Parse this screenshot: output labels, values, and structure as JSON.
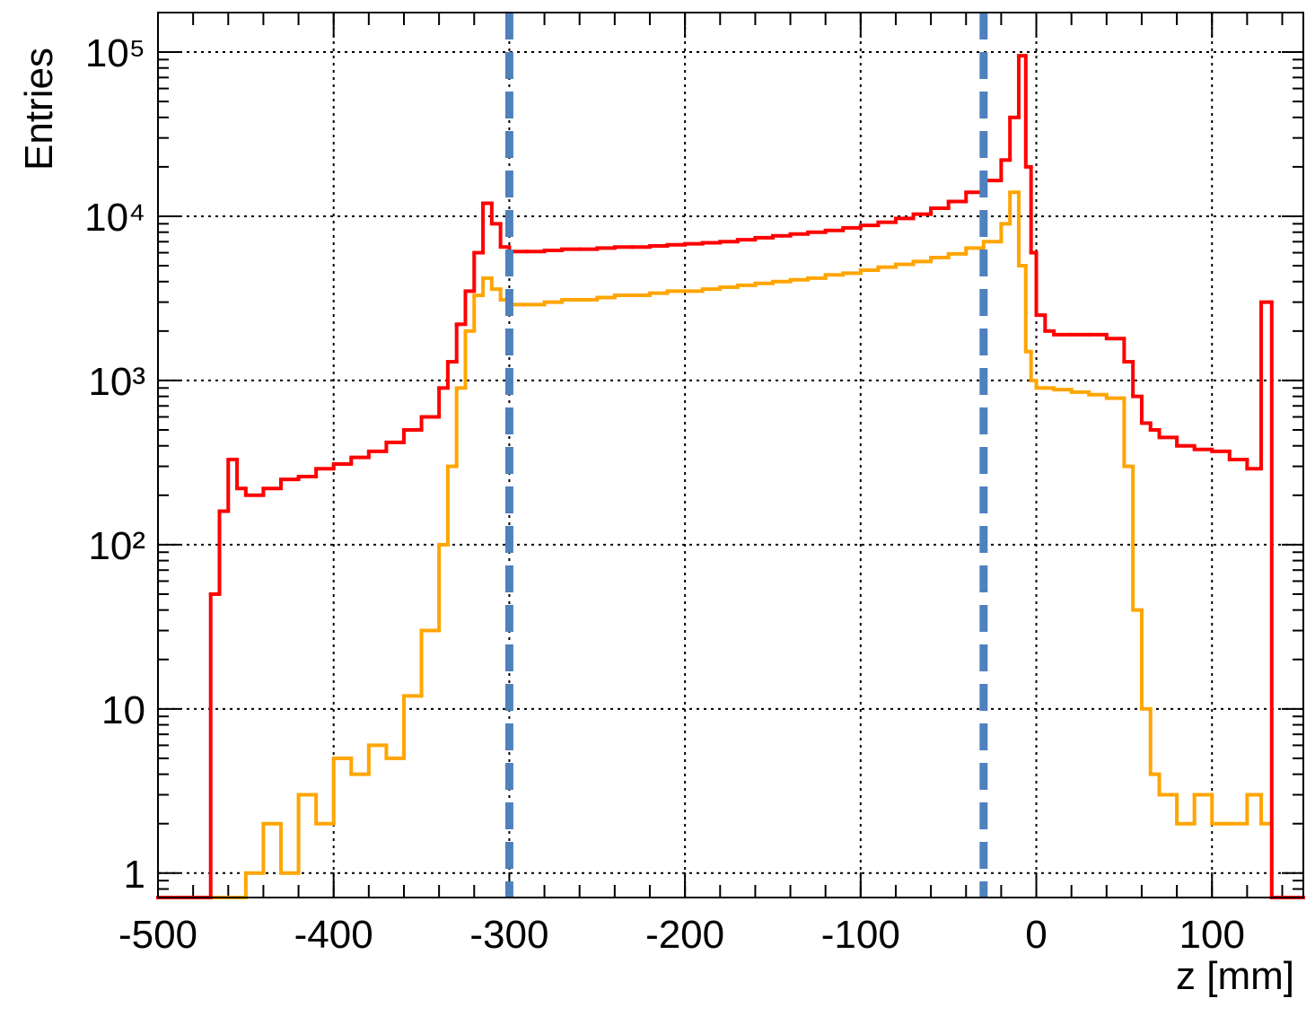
{
  "chart_data": {
    "type": "histogram",
    "ylabel": "Entries",
    "xlabel": "z [mm]",
    "log_y": true,
    "grid": true,
    "xlim": [
      -500,
      152
    ],
    "ylim": [
      0.71,
      174000
    ],
    "xticks": [
      -500,
      -400,
      -300,
      -200,
      -100,
      0,
      100
    ],
    "yticks": [
      1,
      10,
      {
        "value": 100,
        "label": "10²"
      },
      {
        "value": 1000,
        "label": "10³"
      },
      {
        "value": 10000,
        "label": "10⁴"
      },
      {
        "value": 100000,
        "label": "10⁵"
      }
    ],
    "bins": [
      -500,
      -470,
      -465,
      -460,
      -455,
      -450,
      -440,
      -430,
      -420,
      -410,
      -400,
      -390,
      -380,
      -370,
      -360,
      -350,
      -340,
      -335,
      -330,
      -325,
      -320,
      -315,
      -310,
      -305,
      -300,
      -290,
      -280,
      -270,
      -260,
      -250,
      -240,
      -230,
      -220,
      -210,
      -200,
      -190,
      -180,
      -170,
      -160,
      -150,
      -140,
      -130,
      -120,
      -110,
      -100,
      -90,
      -80,
      -70,
      -60,
      -50,
      -40,
      -30,
      -20,
      -15,
      -10,
      -6,
      -3,
      0,
      5,
      10,
      20,
      30,
      40,
      50,
      55,
      60,
      65,
      70,
      80,
      90,
      100,
      110,
      120,
      128,
      134,
      152
    ],
    "series": [
      {
        "color": "#ff0000",
        "values": [
          0,
          50,
          160,
          330,
          220,
          200,
          220,
          250,
          260,
          290,
          310,
          340,
          370,
          420,
          500,
          600,
          900,
          1300,
          2200,
          3500,
          6000,
          12000,
          9000,
          6500,
          6100,
          6100,
          6200,
          6300,
          6300,
          6400,
          6500,
          6500,
          6600,
          6700,
          6800,
          6900,
          7000,
          7200,
          7400,
          7600,
          7800,
          8000,
          8200,
          8500,
          8800,
          9200,
          9700,
          10300,
          11200,
          12300,
          14000,
          16500,
          22000,
          40000,
          95000,
          20000,
          6000,
          2500,
          2000,
          1900,
          1900,
          1900,
          1800,
          1300,
          800,
          550,
          500,
          450,
          400,
          380,
          370,
          330,
          290,
          3000,
          0
        ]
      },
      {
        "color": "#ffa500",
        "values": [
          0,
          0,
          0,
          0,
          0,
          1,
          2,
          1,
          3,
          2,
          5,
          4,
          6,
          5,
          12,
          30,
          100,
          300,
          900,
          2000,
          3300,
          4200,
          3600,
          3100,
          2900,
          2900,
          3000,
          3100,
          3100,
          3200,
          3300,
          3300,
          3400,
          3500,
          3500,
          3600,
          3700,
          3800,
          3900,
          4000,
          4100,
          4200,
          4400,
          4500,
          4700,
          4900,
          5100,
          5300,
          5600,
          5900,
          6400,
          7000,
          9000,
          14000,
          5000,
          1500,
          1000,
          900,
          900,
          880,
          850,
          820,
          780,
          300,
          40,
          10,
          4,
          3,
          2,
          3,
          2,
          2,
          3,
          2,
          0
        ]
      }
    ],
    "vlines": [
      -300,
      -30
    ],
    "vline_color": "#4f81bd"
  }
}
